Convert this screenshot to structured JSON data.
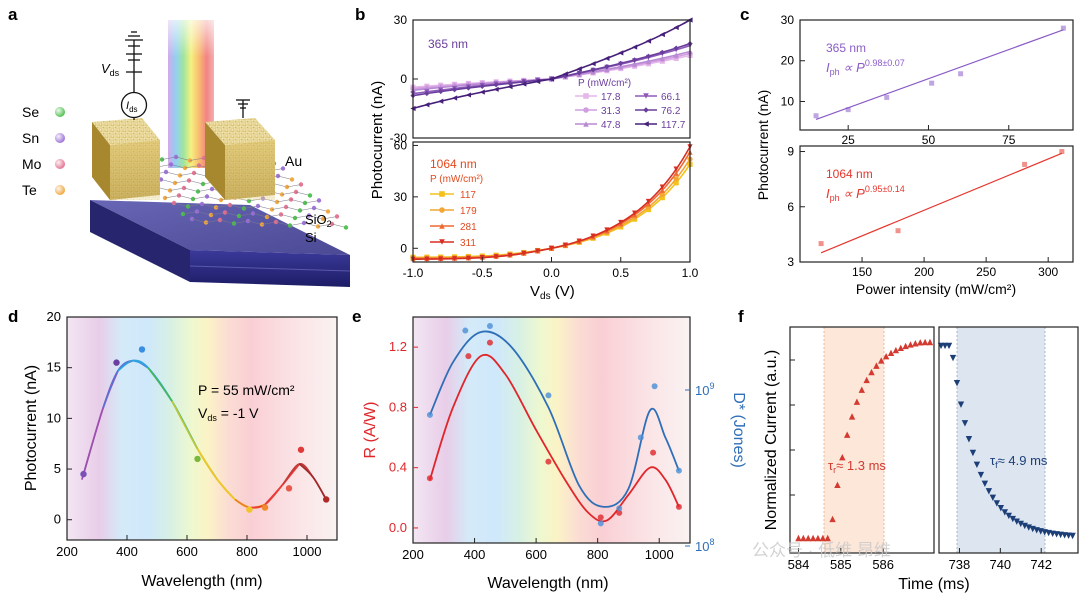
{
  "panel_letters": [
    "a",
    "b",
    "c",
    "d",
    "e",
    "f"
  ],
  "panel_a": {
    "legend": [
      {
        "label": "Se",
        "color": "#4bbf4b"
      },
      {
        "label": "Sn",
        "color": "#9a6fd6"
      },
      {
        "label": "Mo",
        "color": "#e3708e"
      },
      {
        "label": "Te",
        "color": "#f0a53c"
      }
    ],
    "vds_label": "V",
    "vds_sub": "ds",
    "ids_label": "I",
    "ids_sub": "ds",
    "au_label": "Au",
    "sio2_label": "SiO",
    "sio2_sub": "2",
    "si_label": "Si"
  },
  "watermark": "公众号 · 低维 昂维",
  "chart_data": [
    {
      "id": "b_top",
      "type": "line",
      "title": "365 nm",
      "xlim": [
        -1,
        1
      ],
      "ylim": [
        -30,
        30
      ],
      "ytick_labels": [
        "30",
        "0",
        "-30"
      ],
      "legend_title": "P (mW/cm²)",
      "series": [
        {
          "name": "17.8",
          "color": "#e6b8ea",
          "k": 12,
          "marker": "square"
        },
        {
          "name": "31.3",
          "color": "#d19ee0",
          "k": 13,
          "marker": "circle"
        },
        {
          "name": "47.8",
          "color": "#b98ad4",
          "k": 14,
          "marker": "triangle"
        },
        {
          "name": "66.1",
          "color": "#8d5ab8",
          "k": 17,
          "marker": "triangle-down"
        },
        {
          "name": "76.2",
          "color": "#6a3e9c",
          "k": 18,
          "marker": "diamond"
        },
        {
          "name": "117.7",
          "color": "#46207a",
          "k": 30,
          "marker": "triangle-left"
        }
      ]
    },
    {
      "id": "b_bottom",
      "type": "line",
      "title": "1064 nm",
      "xlim": [
        -1,
        1
      ],
      "ylim": [
        -8,
        62
      ],
      "ytick_labels": [
        "60",
        "30",
        "0"
      ],
      "xtick_labels": [
        "-1.0",
        "-0.5",
        "0.0",
        "0.5",
        "1.0"
      ],
      "xlabel": "V",
      "xlabel_sub": "ds",
      "xlabel_unit": " (V)",
      "ylabel": "Photocurrent (nA)",
      "legend_title": "P (mW/cm²)",
      "series": [
        {
          "name": "117",
          "color": "#f4c21a",
          "k": 48,
          "marker": "square"
        },
        {
          "name": "179",
          "color": "#f2a636",
          "k": 51,
          "marker": "circle"
        },
        {
          "name": "281",
          "color": "#ee6a30",
          "k": 55,
          "marker": "triangle"
        },
        {
          "name": "311",
          "color": "#d82e22",
          "k": 58,
          "marker": "triangle-down"
        }
      ]
    },
    {
      "id": "c_top",
      "type": "scatter",
      "xlim": [
        10,
        95
      ],
      "ylim": [
        3,
        30
      ],
      "ytick_labels": [
        "30",
        "20",
        "10"
      ],
      "xtick_labels": [
        "25",
        "50",
        "75"
      ],
      "ann_line1": "365 nm",
      "ann_I": "I",
      "ann_sub": "ph",
      "ann_prop": " ∝ P",
      "ann_exp": "0.98±0.07",
      "color": "#8a5cc6",
      "points": [
        [
          15,
          6.5
        ],
        [
          25,
          8
        ],
        [
          37,
          11
        ],
        [
          51,
          14.5
        ],
        [
          60,
          16.8
        ],
        [
          92,
          28
        ]
      ],
      "fit": [
        [
          15,
          5.6
        ],
        [
          92,
          27.6
        ]
      ]
    },
    {
      "id": "c_bottom",
      "type": "scatter",
      "xlim": [
        100,
        320
      ],
      "ylim": [
        3,
        9.3
      ],
      "ytick_labels": [
        "9",
        "6",
        "3"
      ],
      "xtick_labels": [
        "150",
        "200",
        "250",
        "300"
      ],
      "ann_line1": "1064 nm",
      "ann_I": "I",
      "ann_sub": "ph",
      "ann_prop": " ∝ P",
      "ann_exp": "0.95±0.14",
      "xlabel": "Power intensity (mW/cm²)",
      "ylabel": "Photocurrent (nA)",
      "color": "#e6362e",
      "points": [
        [
          117,
          4
        ],
        [
          179,
          4.7
        ],
        [
          281,
          8.3
        ],
        [
          311,
          9
        ]
      ],
      "fit": [
        [
          117,
          3.5
        ],
        [
          311,
          8.9
        ]
      ]
    },
    {
      "id": "d",
      "type": "line",
      "xlim": [
        200,
        1100
      ],
      "ylim": [
        -2,
        20
      ],
      "ytick_labels": [
        "20",
        "15",
        "10",
        "5",
        "0"
      ],
      "xtick_labels": [
        "200",
        "400",
        "600",
        "800",
        "1000"
      ],
      "xlabel": "Wavelength (nm)",
      "ylabel": "Photocurrent (nA)",
      "ann_p": "P = 55 mW/cm²",
      "ann_v": "V",
      "ann_v_sub": "ds",
      "ann_v_val": " = -1 V",
      "points": [
        [
          255,
          4.5
        ],
        [
          365,
          15.5
        ],
        [
          450,
          16.8
        ],
        [
          635,
          6
        ],
        [
          808,
          1
        ],
        [
          860,
          1.2
        ],
        [
          940,
          3.1
        ],
        [
          980,
          6.9
        ],
        [
          1064,
          2
        ]
      ],
      "curve": [
        [
          255,
          4.5
        ],
        [
          320,
          11
        ],
        [
          370,
          14.7
        ],
        [
          420,
          15.7
        ],
        [
          470,
          15
        ],
        [
          550,
          11.7
        ],
        [
          635,
          7
        ],
        [
          700,
          4
        ],
        [
          760,
          2
        ],
        [
          808,
          1.2
        ],
        [
          860,
          1.5
        ],
        [
          920,
          3.5
        ],
        [
          975,
          5.5
        ],
        [
          1020,
          4.2
        ],
        [
          1064,
          2
        ]
      ]
    },
    {
      "id": "e",
      "type": "line",
      "xlim": [
        200,
        1100
      ],
      "ylim": [
        -0.1,
        1.4
      ],
      "ytick_labels": [
        "1.2",
        "0.8",
        "0.4",
        "0.0"
      ],
      "xtick_labels": [
        "200",
        "400",
        "600",
        "800",
        "1000"
      ],
      "xlabel": "Wavelength (nm)",
      "ylabel": "R (A/W)",
      "y2label": "D* (Jones)",
      "y2tick_main": "10",
      "y2tick_top_exp": "9",
      "y2tick_bot_exp": "8",
      "red_points": [
        [
          255,
          0.33
        ],
        [
          380,
          1.14
        ],
        [
          450,
          1.23
        ],
        [
          640,
          0.44
        ],
        [
          810,
          0.07
        ],
        [
          870,
          0.1
        ],
        [
          980,
          0.5
        ],
        [
          1064,
          0.14
        ]
      ],
      "red_curve": [
        [
          255,
          0.32
        ],
        [
          330,
          0.8
        ],
        [
          420,
          1.14
        ],
        [
          500,
          1.02
        ],
        [
          600,
          0.65
        ],
        [
          700,
          0.3
        ],
        [
          770,
          0.1
        ],
        [
          830,
          0.05
        ],
        [
          900,
          0.22
        ],
        [
          970,
          0.4
        ],
        [
          1020,
          0.32
        ],
        [
          1064,
          0.14
        ]
      ],
      "blue_points": [
        [
          255,
          0.75
        ],
        [
          370,
          1.31
        ],
        [
          450,
          1.34
        ],
        [
          640,
          0.88
        ],
        [
          810,
          0.03
        ],
        [
          870,
          0.13
        ],
        [
          940,
          0.6
        ],
        [
          985,
          0.94
        ],
        [
          1064,
          0.38
        ]
      ],
      "blue_curve": [
        [
          255,
          0.75
        ],
        [
          330,
          1.1
        ],
        [
          420,
          1.3
        ],
        [
          520,
          1.2
        ],
        [
          640,
          0.8
        ],
        [
          740,
          0.28
        ],
        [
          820,
          0.14
        ],
        [
          900,
          0.26
        ],
        [
          970,
          0.78
        ],
        [
          1020,
          0.6
        ],
        [
          1064,
          0.38
        ]
      ]
    },
    {
      "id": "f",
      "type": "scatter",
      "ylabel": "Normalized Current (a.u.)",
      "xlabel": "Time (ms)",
      "left_xtick_labels": [
        "584",
        "585",
        "586"
      ],
      "right_xtick_labels": [
        "738",
        "740",
        "742"
      ],
      "rise_label": "τ",
      "rise_sub": "r",
      "rise_val": "≈ 1.3 ms",
      "fall_label": "τ",
      "fall_sub": "f",
      "fall_val": "≈ 4.9 ms",
      "rise_color": "#d33a30",
      "fall_color": "#1d3f78",
      "rise_tau_ms": 1.3,
      "fall_tau_ms": 4.9
    }
  ]
}
